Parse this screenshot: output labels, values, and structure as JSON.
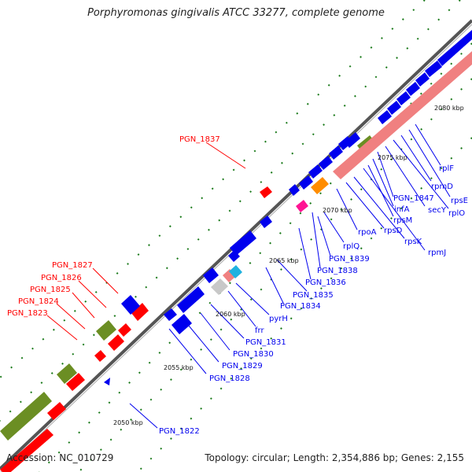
{
  "title": "Porphyromonas gingivalis ATCC 33277, complete genome",
  "footer": {
    "accession": "Accession: NC_010729",
    "summary": "Topology: circular; Length: 2,354,886 bp; Genes: 2,155"
  },
  "colors": {
    "plus_cds": "#ff0000",
    "minus_cds": "#0000ee",
    "trna": "#6b8e23",
    "rrna": "#f08080",
    "backbone": "#808080",
    "tick": "#1a7a1a"
  },
  "scale": [
    "2050 kbp",
    "2055 kbp",
    "2060 kbp",
    "2065 kbp",
    "2070 kbp",
    "2075 kbp",
    "2080 kbp"
  ],
  "labels_top": [
    "PGN_1837",
    "PGN_1827",
    "PGN_1826",
    "PGN_1825",
    "PGN_1824",
    "PGN_1823"
  ],
  "labels_bottom": [
    "PGN_1822",
    "PGN_1828",
    "PGN_1829",
    "PGN_1830",
    "PGN_1831",
    "frr",
    "pyrH",
    "PGN_1834",
    "PGN_1835",
    "PGN_1836",
    "PGN_1838",
    "PGN_1839",
    "rplQ",
    "rpoA",
    "rpsD",
    "rpsK",
    "rpmJ",
    "rpsM",
    "infA",
    "PGN_1847",
    "secY",
    "rplO",
    "rpmD",
    "rpsE",
    "rplF"
  ]
}
